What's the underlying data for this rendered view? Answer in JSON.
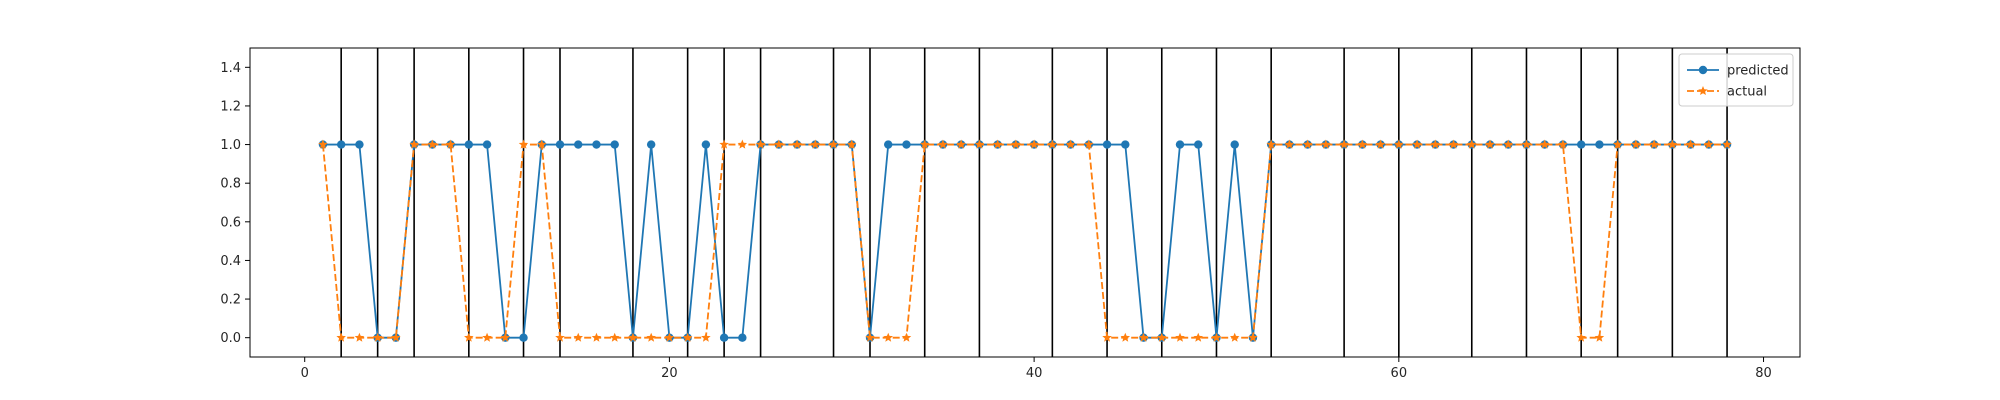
{
  "chart_data": {
    "type": "line",
    "title": "",
    "xlabel": "",
    "ylabel": "",
    "xlim": [
      -3,
      82
    ],
    "ylim": [
      -0.1,
      1.5
    ],
    "xticks": [
      0,
      20,
      40,
      60,
      80
    ],
    "yticks": [
      0.0,
      0.2,
      0.4,
      0.6,
      0.8,
      1.0,
      1.2,
      1.4
    ],
    "xtick_labels": [
      "0",
      "20",
      "40",
      "60",
      "80"
    ],
    "ytick_labels": [
      "0.0",
      "0.2",
      "0.4",
      "0.6",
      "0.8",
      "1.0",
      "1.2",
      "1.4"
    ],
    "grid": false,
    "legend_position": "top-right",
    "x": [
      1,
      2,
      3,
      4,
      5,
      6,
      7,
      8,
      9,
      10,
      11,
      12,
      13,
      14,
      15,
      16,
      17,
      18,
      19,
      20,
      21,
      22,
      23,
      24,
      25,
      26,
      27,
      28,
      29,
      30,
      31,
      32,
      33,
      34,
      35,
      36,
      37,
      38,
      39,
      40,
      41,
      42,
      43,
      44,
      45,
      46,
      47,
      48,
      49,
      50,
      51,
      52,
      53,
      54,
      55,
      56,
      57,
      58,
      59,
      60,
      61,
      62,
      63,
      64,
      65,
      66,
      67,
      68,
      69,
      70,
      71,
      72,
      73,
      74,
      75,
      76,
      77,
      78
    ],
    "series": [
      {
        "name": "predicted",
        "color": "#1f77b4",
        "marker": "circle",
        "linestyle": "solid",
        "values": [
          1,
          1,
          1,
          0,
          0,
          1,
          1,
          1,
          1,
          1,
          0,
          0,
          1,
          1,
          1,
          1,
          1,
          0,
          1,
          0,
          0,
          1,
          0,
          0,
          1,
          1,
          1,
          1,
          1,
          1,
          0,
          1,
          1,
          1,
          1,
          1,
          1,
          1,
          1,
          1,
          1,
          1,
          1,
          1,
          1,
          0,
          0,
          1,
          1,
          0,
          1,
          0,
          1,
          1,
          1,
          1,
          1,
          1,
          1,
          1,
          1,
          1,
          1,
          1,
          1,
          1,
          1,
          1,
          1,
          1,
          1,
          1,
          1,
          1,
          1,
          1,
          1,
          1
        ]
      },
      {
        "name": "actual",
        "color": "#ff7f0e",
        "marker": "star",
        "linestyle": "dashed",
        "values": [
          1,
          0,
          0,
          0,
          0,
          1,
          1,
          1,
          0,
          0,
          0,
          1,
          1,
          0,
          0,
          0,
          0,
          0,
          0,
          0,
          0,
          0,
          1,
          1,
          1,
          1,
          1,
          1,
          1,
          1,
          0,
          0,
          0,
          1,
          1,
          1,
          1,
          1,
          1,
          1,
          1,
          1,
          1,
          0,
          0,
          0,
          0,
          0,
          0,
          0,
          0,
          0,
          1,
          1,
          1,
          1,
          1,
          1,
          1,
          1,
          1,
          1,
          1,
          1,
          1,
          1,
          1,
          1,
          1,
          0,
          0,
          1,
          1,
          1,
          1,
          1,
          1,
          1
        ]
      }
    ],
    "vertical_lines": {
      "color": "#000000",
      "x": [
        2,
        4,
        6,
        9,
        12,
        14,
        18,
        21,
        23,
        25,
        29,
        31,
        34,
        37,
        41,
        44,
        47,
        50,
        53,
        57,
        60,
        64,
        67,
        70,
        72,
        75,
        78
      ]
    }
  }
}
